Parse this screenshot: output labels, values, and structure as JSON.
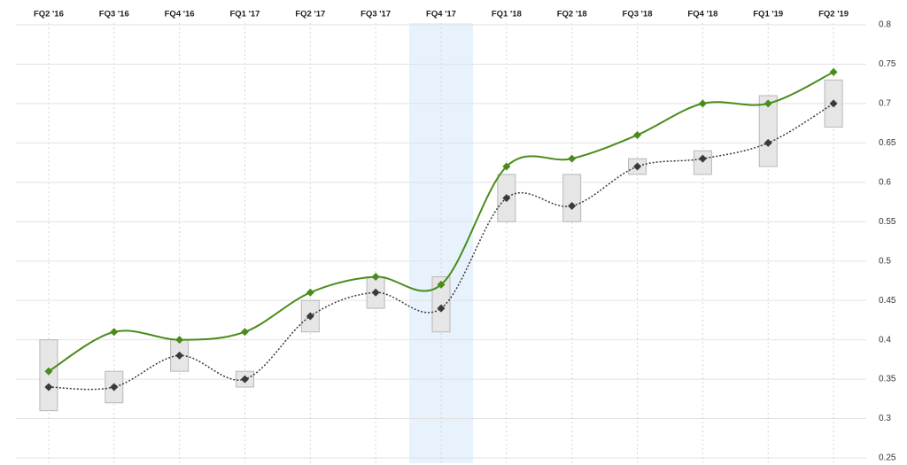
{
  "chart_data": {
    "type": "line",
    "categories": [
      "FQ2 '16",
      "FQ3 '16",
      "FQ4 '16",
      "FQ1 '17",
      "FQ2 '17",
      "FQ3 '17",
      "FQ4 '17",
      "FQ1 '18",
      "FQ2 '18",
      "FQ3 '18",
      "FQ4 '18",
      "FQ1 '19",
      "FQ2 '19"
    ],
    "series": [
      {
        "color": "#4a8c1c",
        "dashed": false,
        "values": [
          0.36,
          0.41,
          0.4,
          0.41,
          0.46,
          0.48,
          0.47,
          0.62,
          0.63,
          0.66,
          0.7,
          0.7,
          0.74
        ]
      },
      {
        "color": "#3a3a3a",
        "dashed": true,
        "values": [
          0.34,
          0.34,
          0.38,
          0.35,
          0.43,
          0.46,
          0.44,
          0.58,
          0.57,
          0.62,
          0.63,
          0.65,
          0.7
        ]
      }
    ],
    "ranges": {
      "low": [
        0.31,
        0.32,
        0.36,
        0.34,
        0.41,
        0.44,
        0.41,
        0.55,
        0.55,
        0.61,
        0.61,
        0.62,
        0.67
      ],
      "high": [
        0.4,
        0.36,
        0.4,
        0.36,
        0.45,
        0.48,
        0.48,
        0.61,
        0.61,
        0.63,
        0.64,
        0.71,
        0.73
      ]
    },
    "highlight_index": 6,
    "highlight_color": "#e8f2fd",
    "ylim": [
      0.25,
      0.8
    ],
    "yticks": [
      0.8,
      0.75,
      0.7,
      0.65,
      0.6,
      0.55,
      0.5,
      0.45,
      0.4,
      0.35,
      0.3,
      0.25
    ],
    "grid": true
  }
}
